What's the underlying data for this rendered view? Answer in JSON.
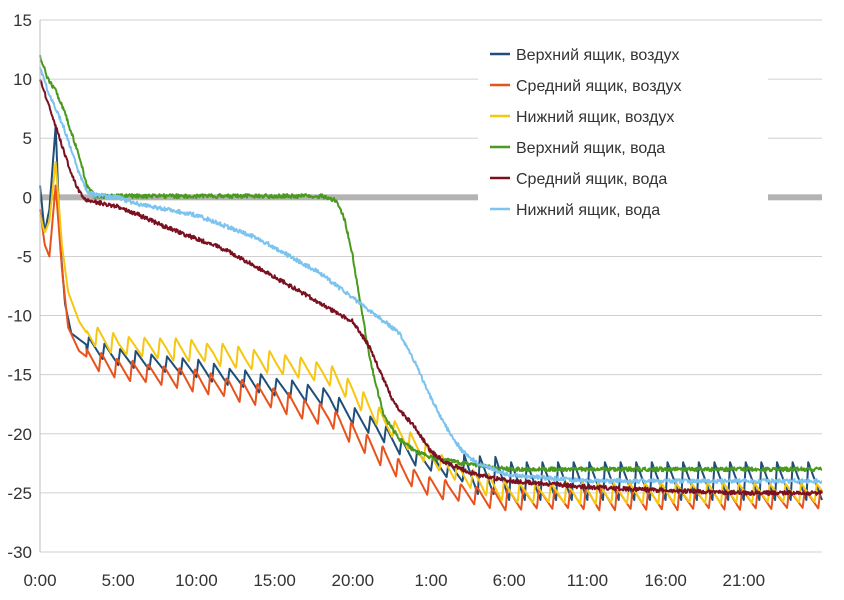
{
  "chart_data": {
    "type": "line",
    "title": "",
    "xlabel": "",
    "ylabel": "",
    "ylim": [
      -30,
      15
    ],
    "yticks": [
      "15",
      "10",
      "5",
      "0",
      "-5",
      "-10",
      "-15",
      "-20",
      "-25",
      "-30"
    ],
    "yticks_values": [
      15,
      10,
      5,
      0,
      -5,
      -10,
      -15,
      -20,
      -25,
      -30
    ],
    "x_unit": "hours since start",
    "xlim": [
      0,
      50
    ],
    "xticks": [
      "0:00",
      "5:00",
      "10:00",
      "15:00",
      "20:00",
      "1:00",
      "6:00",
      "11:00",
      "16:00",
      "21:00"
    ],
    "xticks_values": [
      0,
      5,
      10,
      15,
      20,
      25,
      30,
      35,
      40,
      45
    ],
    "grid": true,
    "legend_position": "top-right",
    "zero_band_color": "#b3b3b3",
    "series": [
      {
        "name": "Верхний ящик, воздух",
        "color": "#1f4e79",
        "cycle": {
          "period": 1.0,
          "amplitude_min": 0.8,
          "amplitude_max": 1.6
        },
        "points": [
          [
            0,
            1
          ],
          [
            0.3,
            -3
          ],
          [
            0.6,
            -1
          ],
          [
            1.0,
            6
          ],
          [
            1.3,
            -4
          ],
          [
            1.6,
            -9
          ],
          [
            2,
            -11.5
          ],
          [
            3,
            -12.5
          ],
          [
            5,
            -13.5
          ],
          [
            10,
            -14.5
          ],
          [
            15,
            -16
          ],
          [
            17,
            -16.5
          ],
          [
            18.5,
            -17
          ],
          [
            20,
            -18.5
          ],
          [
            21.5,
            -19.5
          ],
          [
            23,
            -21
          ],
          [
            24,
            -22
          ],
          [
            25,
            -22.5
          ],
          [
            26,
            -23
          ],
          [
            27.5,
            -23.5
          ],
          [
            29,
            -23.5
          ],
          [
            30,
            -24
          ],
          [
            50,
            -24
          ]
        ]
      },
      {
        "name": "Средний ящик, воздух",
        "color": "#e8521c",
        "cycle": {
          "period": 1.0,
          "amplitude_min": 1.0,
          "amplitude_max": 2.0
        },
        "points": [
          [
            0,
            -1
          ],
          [
            0.3,
            -4
          ],
          [
            0.6,
            -5
          ],
          [
            1.0,
            1
          ],
          [
            1.4,
            -6
          ],
          [
            1.8,
            -11
          ],
          [
            2.5,
            -13
          ],
          [
            3,
            -13.5
          ],
          [
            5,
            -14.5
          ],
          [
            10,
            -15.5
          ],
          [
            15,
            -17
          ],
          [
            17,
            -18
          ],
          [
            18.5,
            -18.5
          ],
          [
            20,
            -20
          ],
          [
            22,
            -22
          ],
          [
            23.5,
            -23.5
          ],
          [
            25,
            -24.5
          ],
          [
            27,
            -25
          ],
          [
            29,
            -25.5
          ],
          [
            30,
            -25.5
          ],
          [
            50,
            -25.5
          ]
        ]
      },
      {
        "name": "Нижний ящик, воздух",
        "color": "#f5c711",
        "cycle": {
          "period": 1.0,
          "amplitude_min": 1.0,
          "amplitude_max": 2.0
        },
        "points": [
          [
            0,
            -1.5
          ],
          [
            0.3,
            -3
          ],
          [
            0.6,
            -2
          ],
          [
            1.0,
            3
          ],
          [
            1.4,
            -4
          ],
          [
            1.8,
            -8
          ],
          [
            2.5,
            -10.5
          ],
          [
            3,
            -11.5
          ],
          [
            5,
            -12.5
          ],
          [
            10,
            -13
          ],
          [
            15,
            -14
          ],
          [
            17,
            -14.5
          ],
          [
            18.5,
            -15
          ],
          [
            20,
            -16.5
          ],
          [
            22,
            -19
          ],
          [
            23.5,
            -20.5
          ],
          [
            25,
            -22
          ],
          [
            27,
            -23.5
          ],
          [
            29,
            -24.5
          ],
          [
            30,
            -25
          ],
          [
            50,
            -25
          ]
        ]
      },
      {
        "name": "Верхний ящик, вода",
        "color": "#4a9a1f",
        "cycle": {
          "period": 0,
          "amplitude_min": 0,
          "amplitude_max": 0
        },
        "points": [
          [
            0,
            12
          ],
          [
            0.5,
            10
          ],
          [
            1,
            9
          ],
          [
            1.5,
            7.5
          ],
          [
            2,
            5.5
          ],
          [
            2.5,
            3.5
          ],
          [
            3,
            1
          ],
          [
            3.5,
            0.1
          ],
          [
            4,
            0.1
          ],
          [
            10,
            0.1
          ],
          [
            15,
            0.1
          ],
          [
            18,
            0.1
          ],
          [
            19,
            -0.3
          ],
          [
            19.5,
            -2
          ],
          [
            20,
            -5
          ],
          [
            20.5,
            -9
          ],
          [
            21,
            -13
          ],
          [
            21.5,
            -16
          ],
          [
            22,
            -18.5
          ],
          [
            23,
            -20.5
          ],
          [
            24,
            -21.5
          ],
          [
            25,
            -22
          ],
          [
            27,
            -22.5
          ],
          [
            30,
            -23
          ],
          [
            50,
            -23
          ]
        ]
      },
      {
        "name": "Средний ящик, вода",
        "color": "#7b1020",
        "cycle": {
          "period": 0,
          "amplitude_min": 0,
          "amplitude_max": 0
        },
        "points": [
          [
            0,
            10
          ],
          [
            0.5,
            8
          ],
          [
            1,
            6
          ],
          [
            1.5,
            4
          ],
          [
            2,
            2
          ],
          [
            2.5,
            0.5
          ],
          [
            3,
            -0.3
          ],
          [
            4,
            -0.5
          ],
          [
            5,
            -0.8
          ],
          [
            6,
            -1.3
          ],
          [
            8,
            -2.5
          ],
          [
            10,
            -3.5
          ],
          [
            12,
            -4.5
          ],
          [
            14,
            -6
          ],
          [
            16,
            -7.5
          ],
          [
            18,
            -9
          ],
          [
            19,
            -9.8
          ],
          [
            20,
            -10.5
          ],
          [
            21,
            -12.5
          ],
          [
            22,
            -15.5
          ],
          [
            22.5,
            -17
          ],
          [
            23,
            -18
          ],
          [
            24,
            -19.5
          ],
          [
            25,
            -21.5
          ],
          [
            26,
            -22.5
          ],
          [
            27,
            -23
          ],
          [
            28,
            -23.5
          ],
          [
            30,
            -24
          ],
          [
            35,
            -24.5
          ],
          [
            40,
            -24.8
          ],
          [
            45,
            -25
          ],
          [
            50,
            -25
          ]
        ]
      },
      {
        "name": "Нижний ящик, вода",
        "color": "#7cc3ee",
        "cycle": {
          "period": 0,
          "amplitude_min": 0,
          "amplitude_max": 0
        },
        "points": [
          [
            0,
            11
          ],
          [
            0.5,
            9
          ],
          [
            1,
            7.5
          ],
          [
            1.5,
            6
          ],
          [
            2,
            4
          ],
          [
            2.5,
            2
          ],
          [
            3,
            0.5
          ],
          [
            3.5,
            0.2
          ],
          [
            5,
            0
          ],
          [
            6,
            -0.5
          ],
          [
            8,
            -1
          ],
          [
            10,
            -1.5
          ],
          [
            12,
            -2.5
          ],
          [
            14,
            -3.5
          ],
          [
            16,
            -5
          ],
          [
            18,
            -6.5
          ],
          [
            19,
            -7.5
          ],
          [
            20,
            -8.5
          ],
          [
            21,
            -9.5
          ],
          [
            22,
            -10.5
          ],
          [
            23,
            -11.5
          ],
          [
            24,
            -14
          ],
          [
            25,
            -17
          ],
          [
            26,
            -19.5
          ],
          [
            27,
            -21.5
          ],
          [
            28,
            -22.5
          ],
          [
            29,
            -23
          ],
          [
            30,
            -23.5
          ],
          [
            35,
            -24
          ],
          [
            40,
            -24
          ],
          [
            45,
            -24
          ],
          [
            50,
            -24
          ]
        ]
      }
    ]
  }
}
